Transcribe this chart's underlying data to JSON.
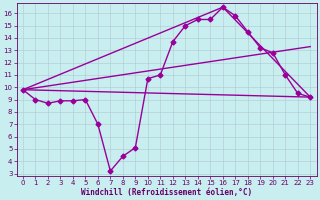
{
  "xlabel": "Windchill (Refroidissement éolien,°C)",
  "windchill_x": [
    0,
    1,
    2,
    3,
    4,
    5,
    6,
    7,
    8,
    9,
    10,
    11,
    12,
    13,
    14,
    15,
    16,
    17,
    18,
    19,
    20,
    21,
    22,
    23
  ],
  "windchill_y": [
    9.8,
    9.0,
    8.7,
    8.9,
    8.9,
    9.0,
    7.0,
    3.2,
    4.4,
    5.1,
    10.7,
    11.0,
    13.7,
    15.0,
    15.5,
    15.5,
    16.5,
    15.8,
    14.5,
    13.2,
    12.8,
    11.0,
    9.5,
    9.2
  ],
  "flat_line_x": [
    0,
    23
  ],
  "flat_line_y": [
    9.8,
    9.2
  ],
  "trend_line_x": [
    0,
    23
  ],
  "trend_line_y": [
    9.8,
    13.3
  ],
  "peak_line_x": [
    0,
    16,
    23
  ],
  "peak_line_y": [
    9.8,
    16.5,
    9.2
  ],
  "line_color": "#990099",
  "xlim": [
    -0.5,
    23.5
  ],
  "ylim": [
    2.8,
    16.8
  ],
  "yticks": [
    3,
    4,
    5,
    6,
    7,
    8,
    9,
    10,
    11,
    12,
    13,
    14,
    15,
    16
  ],
  "xticks": [
    0,
    1,
    2,
    3,
    4,
    5,
    6,
    7,
    8,
    9,
    10,
    11,
    12,
    13,
    14,
    15,
    16,
    17,
    18,
    19,
    20,
    21,
    22,
    23
  ],
  "bg_color": "#c8eef0",
  "grid_color": "#b0c8d0",
  "axis_color": "#660066",
  "text_color": "#660066",
  "label_fontsize": 5.5,
  "tick_fontsize": 5.0,
  "marker": "D",
  "markersize": 2.5,
  "linewidth": 1.0
}
